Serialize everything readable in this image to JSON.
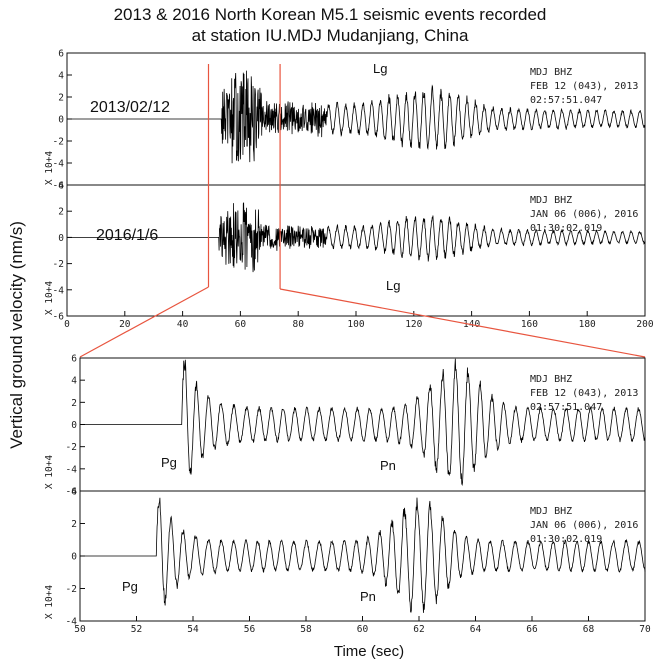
{
  "title_line1": "2013 & 2016 North Korean M5.1 seismic events recorded",
  "title_line2": "at station IU.MDJ Mudanjiang, China",
  "colors": {
    "zoom_lines": "#e8553f",
    "trace": "#000000"
  },
  "chart_data": [
    {
      "type": "line",
      "panel": "overview",
      "ylabel": "Vertical ground velocity (nm/s)",
      "xlim": [
        0,
        200
      ],
      "x_ticks": [
        "0",
        "20",
        "40",
        "60",
        "80",
        "100",
        "120",
        "140",
        "160",
        "180",
        "200"
      ],
      "zoom_window": [
        50,
        72
      ],
      "traces": [
        {
          "name": "2013/02/12",
          "channel": "MDJ   BHZ",
          "date_line": "FEB 12 (043), 2013",
          "time_line": "02:57:51.047",
          "ylim": [
            -6,
            6
          ],
          "y_ticks": [
            "6",
            "4",
            "2",
            "0",
            "-2",
            "-4",
            "-6"
          ],
          "y_multiplier": "X 10+4",
          "phase_labels": [
            {
              "text": "Lg"
            }
          ],
          "onset": 53.5,
          "peak_amp": 5.5
        },
        {
          "name": "2016/1/6",
          "channel": "MDJ   BHZ",
          "date_line": "JAN 06 (006), 2016",
          "time_line": "01:30:02.019",
          "ylim": [
            -6,
            4
          ],
          "y_ticks": [
            "4",
            "2",
            "0",
            "-2",
            "-4",
            "-6"
          ],
          "y_multiplier": "X 10+4",
          "phase_labels": [
            {
              "text": "Lg"
            }
          ],
          "onset": 52.6,
          "peak_amp": 3.4
        }
      ]
    },
    {
      "type": "line",
      "panel": "zoom",
      "xlabel": "Time (sec)",
      "xlim": [
        50,
        70
      ],
      "x_ticks": [
        "50",
        "52",
        "54",
        "56",
        "58",
        "60",
        "62",
        "64",
        "66",
        "68",
        "70"
      ],
      "traces": [
        {
          "channel": "MDJ   BHZ",
          "date_line": "FEB 12 (043), 2013",
          "time_line": "02:57:51.047",
          "ylim": [
            -6,
            6
          ],
          "y_ticks": [
            "6",
            "4",
            "2",
            "0",
            "-2",
            "-4",
            "-6"
          ],
          "y_multiplier": "X 10+4",
          "phase_labels": [
            {
              "text": "Pg"
            },
            {
              "text": "Pn"
            }
          ],
          "onset": 53.6,
          "peak_amp": 5.8
        },
        {
          "channel": "MDJ   BHZ",
          "date_line": "JAN 06 (006), 2016",
          "time_line": "01:30:02.019",
          "ylim": [
            -4,
            4
          ],
          "y_ticks": [
            "4",
            "2",
            "0",
            "-2",
            "-4"
          ],
          "y_multiplier": "X 10+4",
          "phase_labels": [
            {
              "text": "Pg"
            },
            {
              "text": "Pn"
            }
          ],
          "onset": 52.7,
          "peak_amp": 3.6
        }
      ]
    }
  ]
}
